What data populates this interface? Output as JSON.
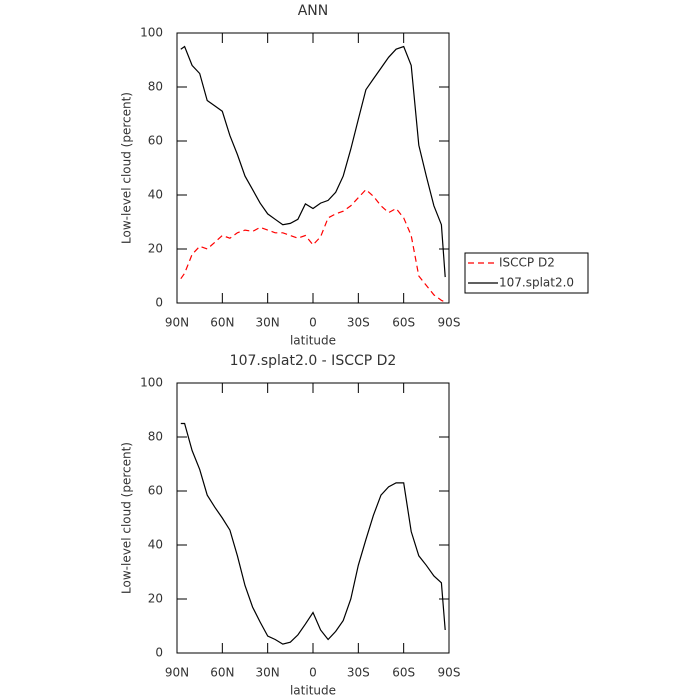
{
  "chart_data": [
    {
      "type": "line",
      "title": "ANN",
      "x_label": "latitude",
      "y_label": "Low-level cloud (percent)",
      "x": [
        87.5,
        85,
        80,
        75,
        70,
        65,
        60,
        55,
        50,
        45,
        40,
        35,
        30,
        25,
        20,
        15,
        10,
        5,
        0,
        -5,
        -10,
        -15,
        -20,
        -25,
        -30,
        -35,
        -40,
        -45,
        -50,
        -55,
        -60,
        -65,
        -70,
        -75,
        -80,
        -85,
        -87.5
      ],
      "xlim": [
        90,
        -90
      ],
      "xticks": [
        {
          "value": 90,
          "label": "90N"
        },
        {
          "value": 60,
          "label": "60N"
        },
        {
          "value": 30,
          "label": "30N"
        },
        0,
        {
          "value": -30,
          "label": "30S"
        },
        {
          "value": -60,
          "label": "60S"
        },
        {
          "value": -90,
          "label": "90S"
        }
      ],
      "ylim": [
        0,
        100
      ],
      "yticks": [
        0,
        20,
        40,
        60,
        80,
        100
      ],
      "legend": "right",
      "series": [
        {
          "name": "ISCCP D2",
          "color": "#ff0000",
          "line_style": "dashed",
          "values": [
            9,
            11,
            18,
            21,
            20,
            22.5,
            25,
            24,
            26,
            27,
            26.5,
            28,
            27,
            26,
            26,
            25,
            24,
            25,
            21.5,
            24.5,
            31.5,
            33,
            34,
            36,
            39,
            42,
            39.5,
            36,
            33.5,
            35,
            31.5,
            25,
            10,
            6.5,
            3,
            1,
            0.3
          ]
        },
        {
          "name": "107.splat2.0",
          "color": "#000000",
          "line_style": "solid",
          "values": [
            94,
            95,
            88,
            85,
            75,
            73,
            71,
            62,
            55,
            47,
            42,
            37,
            33,
            31,
            29,
            29.5,
            31,
            36.7,
            35,
            37,
            38,
            41,
            47,
            57,
            68,
            79,
            83,
            87,
            91,
            94,
            95,
            88,
            58.5,
            47,
            36,
            29,
            9.6
          ]
        }
      ]
    },
    {
      "type": "line",
      "title": "107.splat2.0 - ISCCP D2",
      "x_label": "latitude",
      "y_label": "Low-level cloud (percent)",
      "x": [
        87.5,
        85,
        80,
        75,
        70,
        65,
        60,
        55,
        50,
        45,
        40,
        35,
        30,
        25,
        20,
        15,
        10,
        5,
        0,
        -5,
        -10,
        -15,
        -20,
        -25,
        -30,
        -35,
        -40,
        -45,
        -50,
        -55,
        -60,
        -65,
        -70,
        -75,
        -80,
        -85,
        -87.5
      ],
      "xlim": [
        90,
        -90
      ],
      "xticks": [
        {
          "value": 90,
          "label": "90N"
        },
        {
          "value": 60,
          "label": "60N"
        },
        {
          "value": 30,
          "label": "30N"
        },
        0,
        {
          "value": -30,
          "label": "30S"
        },
        {
          "value": -60,
          "label": "60S"
        },
        {
          "value": -90,
          "label": "90S"
        }
      ],
      "ylim": [
        0,
        100
      ],
      "yticks": [
        0,
        20,
        40,
        60,
        80,
        100
      ],
      "color": "#000000",
      "line_style": "solid",
      "values": [
        85,
        85,
        75,
        68,
        58.5,
        54,
        50,
        45.5,
        36,
        25,
        17,
        11.5,
        6.3,
        5,
        3.3,
        4,
        6.7,
        10.7,
        15,
        8.5,
        5,
        8,
        12,
        20,
        32.5,
        42,
        51,
        58.5,
        61.5,
        63,
        63,
        45,
        36,
        32.5,
        28.5,
        26,
        8.5
      ]
    }
  ]
}
